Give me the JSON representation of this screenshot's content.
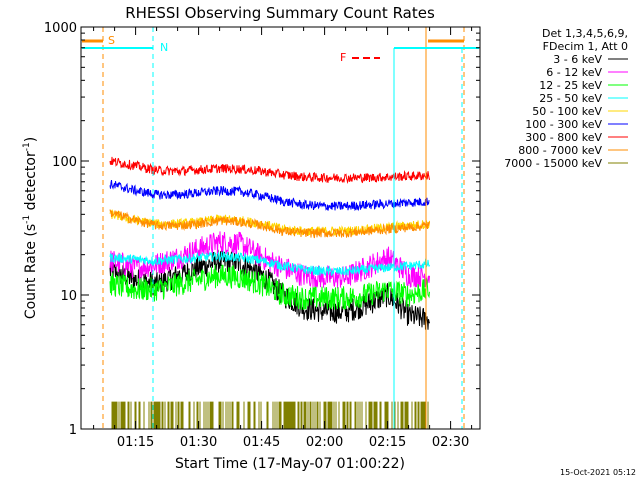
{
  "chart_data": {
    "type": "line",
    "title": "RHESSI Observing Summary Count Rates",
    "xlabel": "Start Time (17-May-07 01:00:22)",
    "ylabel": "Count Rate (s",
    "ylabel_sup1": "-1",
    "ylabel_mid": " detector",
    "ylabel_sup2": "-1",
    "ylabel_end": ")",
    "x_scale": "time",
    "x_range": [
      "01:02",
      "02:37"
    ],
    "x_ticks": [
      "01:15",
      "01:30",
      "01:45",
      "02:00",
      "02:15",
      "02:30"
    ],
    "y_scale": "log",
    "ylim": [
      1,
      1000
    ],
    "y_ticks": [
      "1",
      "10",
      "100",
      "1000"
    ],
    "grid": false,
    "legend_header": [
      "Det 1,3,4,5,6,9,",
      "FDecim 1, Att 0"
    ],
    "legend_placement": "right",
    "series": [
      {
        "name": "3 - 6 keV",
        "color": "#000000",
        "x": [
          "01:09",
          "01:15",
          "01:20",
          "01:25",
          "01:30",
          "01:35",
          "01:40",
          "01:45",
          "01:50",
          "01:55",
          "02:00",
          "02:05",
          "02:10",
          "02:15",
          "02:20",
          "02:25"
        ],
        "values": [
          15,
          13,
          12,
          14,
          16,
          18,
          17,
          14,
          10,
          8,
          7.5,
          7.5,
          8.5,
          10,
          7,
          6.5
        ]
      },
      {
        "name": "6 - 12 keV",
        "color": "#ff00ff",
        "x": [
          "01:09",
          "01:15",
          "01:20",
          "01:25",
          "01:30",
          "01:35",
          "01:40",
          "01:45",
          "01:50",
          "01:55",
          "02:00",
          "02:05",
          "02:10",
          "02:15",
          "02:20",
          "02:25"
        ],
        "values": [
          18,
          16,
          17,
          19,
          22,
          25,
          24,
          19,
          16,
          14,
          13.5,
          13.5,
          16,
          19,
          14,
          14
        ]
      },
      {
        "name": "12 - 25 keV",
        "color": "#00ff00",
        "x": [
          "01:09",
          "01:15",
          "01:20",
          "01:25",
          "01:30",
          "01:35",
          "01:40",
          "01:45",
          "01:50",
          "01:55",
          "02:00",
          "02:05",
          "02:10",
          "02:15",
          "02:20",
          "02:25"
        ],
        "values": [
          12,
          11,
          11,
          12,
          13,
          14,
          13.5,
          12,
          10,
          9.5,
          9.5,
          9.5,
          10,
          11,
          10,
          11
        ]
      },
      {
        "name": "25 - 50 keV",
        "color": "#00ffff",
        "x": [
          "01:09",
          "01:15",
          "01:20",
          "01:25",
          "01:30",
          "01:35",
          "01:40",
          "01:45",
          "01:50",
          "01:55",
          "02:00",
          "02:05",
          "02:10",
          "02:15",
          "02:20",
          "02:25"
        ],
        "values": [
          19,
          18.5,
          18,
          18.5,
          19,
          19.5,
          19,
          18,
          16.5,
          15.5,
          15,
          15,
          15.5,
          16,
          16.5,
          17
        ]
      },
      {
        "name": "50 - 100 keV",
        "color": "#ffd700",
        "x": [
          "01:09",
          "01:15",
          "01:20",
          "01:25",
          "01:30",
          "01:35",
          "01:40",
          "01:45",
          "01:50",
          "01:55",
          "02:00",
          "02:05",
          "02:10",
          "02:15",
          "02:20",
          "02:25"
        ],
        "values": [
          40,
          36,
          34,
          34,
          35,
          37,
          36,
          34,
          31,
          30,
          30,
          30,
          31,
          32,
          33,
          34
        ]
      },
      {
        "name": "100 - 300 keV",
        "color": "#0000ff",
        "x": [
          "01:09",
          "01:15",
          "01:20",
          "01:25",
          "01:30",
          "01:35",
          "01:40",
          "01:45",
          "01:50",
          "01:55",
          "02:00",
          "02:05",
          "02:10",
          "02:15",
          "02:20",
          "02:25"
        ],
        "values": [
          67,
          60,
          56,
          56,
          58,
          60,
          59,
          55,
          50,
          47,
          46,
          46,
          47,
          48,
          49,
          50
        ]
      },
      {
        "name": "300 - 800 keV",
        "color": "#ff0000",
        "x": [
          "01:09",
          "01:15",
          "01:20",
          "01:25",
          "01:30",
          "01:35",
          "01:40",
          "01:45",
          "01:50",
          "01:55",
          "02:00",
          "02:05",
          "02:10",
          "02:15",
          "02:20",
          "02:25"
        ],
        "values": [
          100,
          92,
          85,
          84,
          86,
          88,
          87,
          84,
          79,
          76,
          75,
          75,
          75,
          76,
          77,
          78
        ]
      },
      {
        "name": "800 - 7000 keV",
        "color": "#ff8c00",
        "x": [
          "01:09",
          "01:15",
          "01:20",
          "01:25",
          "01:30",
          "01:35",
          "01:40",
          "01:45",
          "01:50",
          "01:55",
          "02:00",
          "02:05",
          "02:10",
          "02:15",
          "02:20",
          "02:25"
        ],
        "values": [
          41,
          36,
          33,
          33,
          34,
          36,
          35,
          33,
          30,
          29,
          29,
          29,
          30,
          31,
          32,
          33
        ]
      },
      {
        "name": "7000 - 15000 keV",
        "color": "#808000",
        "x": [
          "01:08",
          "01:15",
          "01:20",
          "01:30",
          "01:40",
          "01:50",
          "02:00",
          "02:10",
          "02:20",
          "02:25"
        ],
        "values": [
          1.6,
          1.6,
          1.6,
          1.6,
          1.6,
          1.6,
          1.6,
          1.6,
          1.6,
          1.6
        ]
      }
    ],
    "annotations": [
      {
        "label": "S",
        "color": "#ff8c00"
      },
      {
        "label": "N",
        "color": "#00ffff"
      },
      {
        "label": "F",
        "color": "#ff0000"
      }
    ],
    "timestamp": "15-Oct-2021 05:12"
  }
}
